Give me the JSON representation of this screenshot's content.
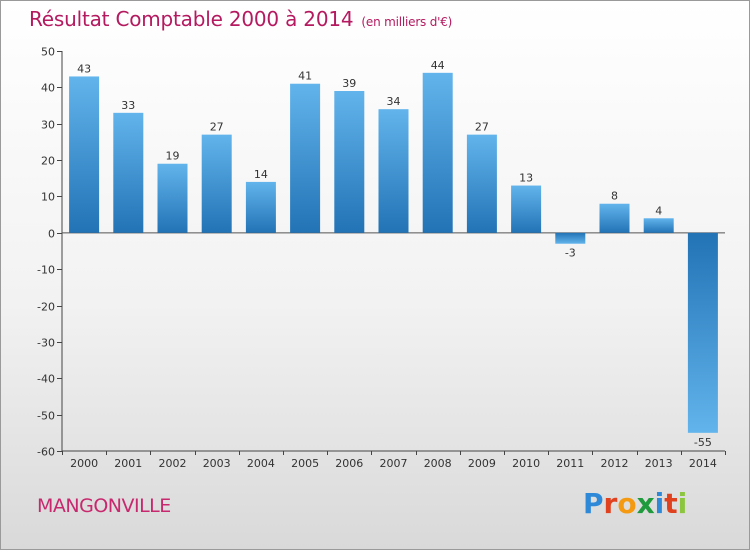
{
  "header": {
    "title": "Résultat Comptable 2000 à 2014",
    "subtitle": "(en milliers d'€)"
  },
  "footer": {
    "town": "MANGONVILLE",
    "logo_letters": [
      "P",
      "r",
      "o",
      "x",
      "i",
      "t",
      "i"
    ],
    "logo_colors": [
      "#2e8ad8",
      "#e0421f",
      "#f39a12",
      "#1f9a3c",
      "#2e8ad8",
      "#e0421f",
      "#8cc63f"
    ]
  },
  "chart_data": {
    "type": "bar",
    "title": "Résultat Comptable 2000 à 2014",
    "subtitle": "(en milliers d'€)",
    "categories": [
      "2000",
      "2001",
      "2002",
      "2003",
      "2004",
      "2005",
      "2006",
      "2007",
      "2008",
      "2009",
      "2010",
      "2011",
      "2012",
      "2013",
      "2014"
    ],
    "values": [
      43,
      33,
      19,
      27,
      14,
      41,
      39,
      34,
      44,
      27,
      13,
      -3,
      8,
      4,
      -55
    ],
    "data_labels": [
      "43",
      "33",
      "19",
      "27",
      "14",
      "41",
      "39",
      "34",
      "44",
      "27",
      "13",
      "-3",
      "8",
      "4",
      "-55"
    ],
    "yticks": [
      50,
      40,
      30,
      20,
      10,
      0,
      -10,
      -20,
      -30,
      -40,
      -50,
      -60
    ],
    "ytick_labels": [
      "50",
      "40",
      "30",
      "20",
      "10",
      "0",
      "-10",
      "-20",
      "-30",
      "-40",
      "-50",
      "-60"
    ],
    "ylim": [
      -60,
      50
    ],
    "xlabel": "",
    "ylabel": "",
    "bar_color_light": "#62b4ec",
    "bar_color_dark": "#2273b5",
    "grid": false
  }
}
